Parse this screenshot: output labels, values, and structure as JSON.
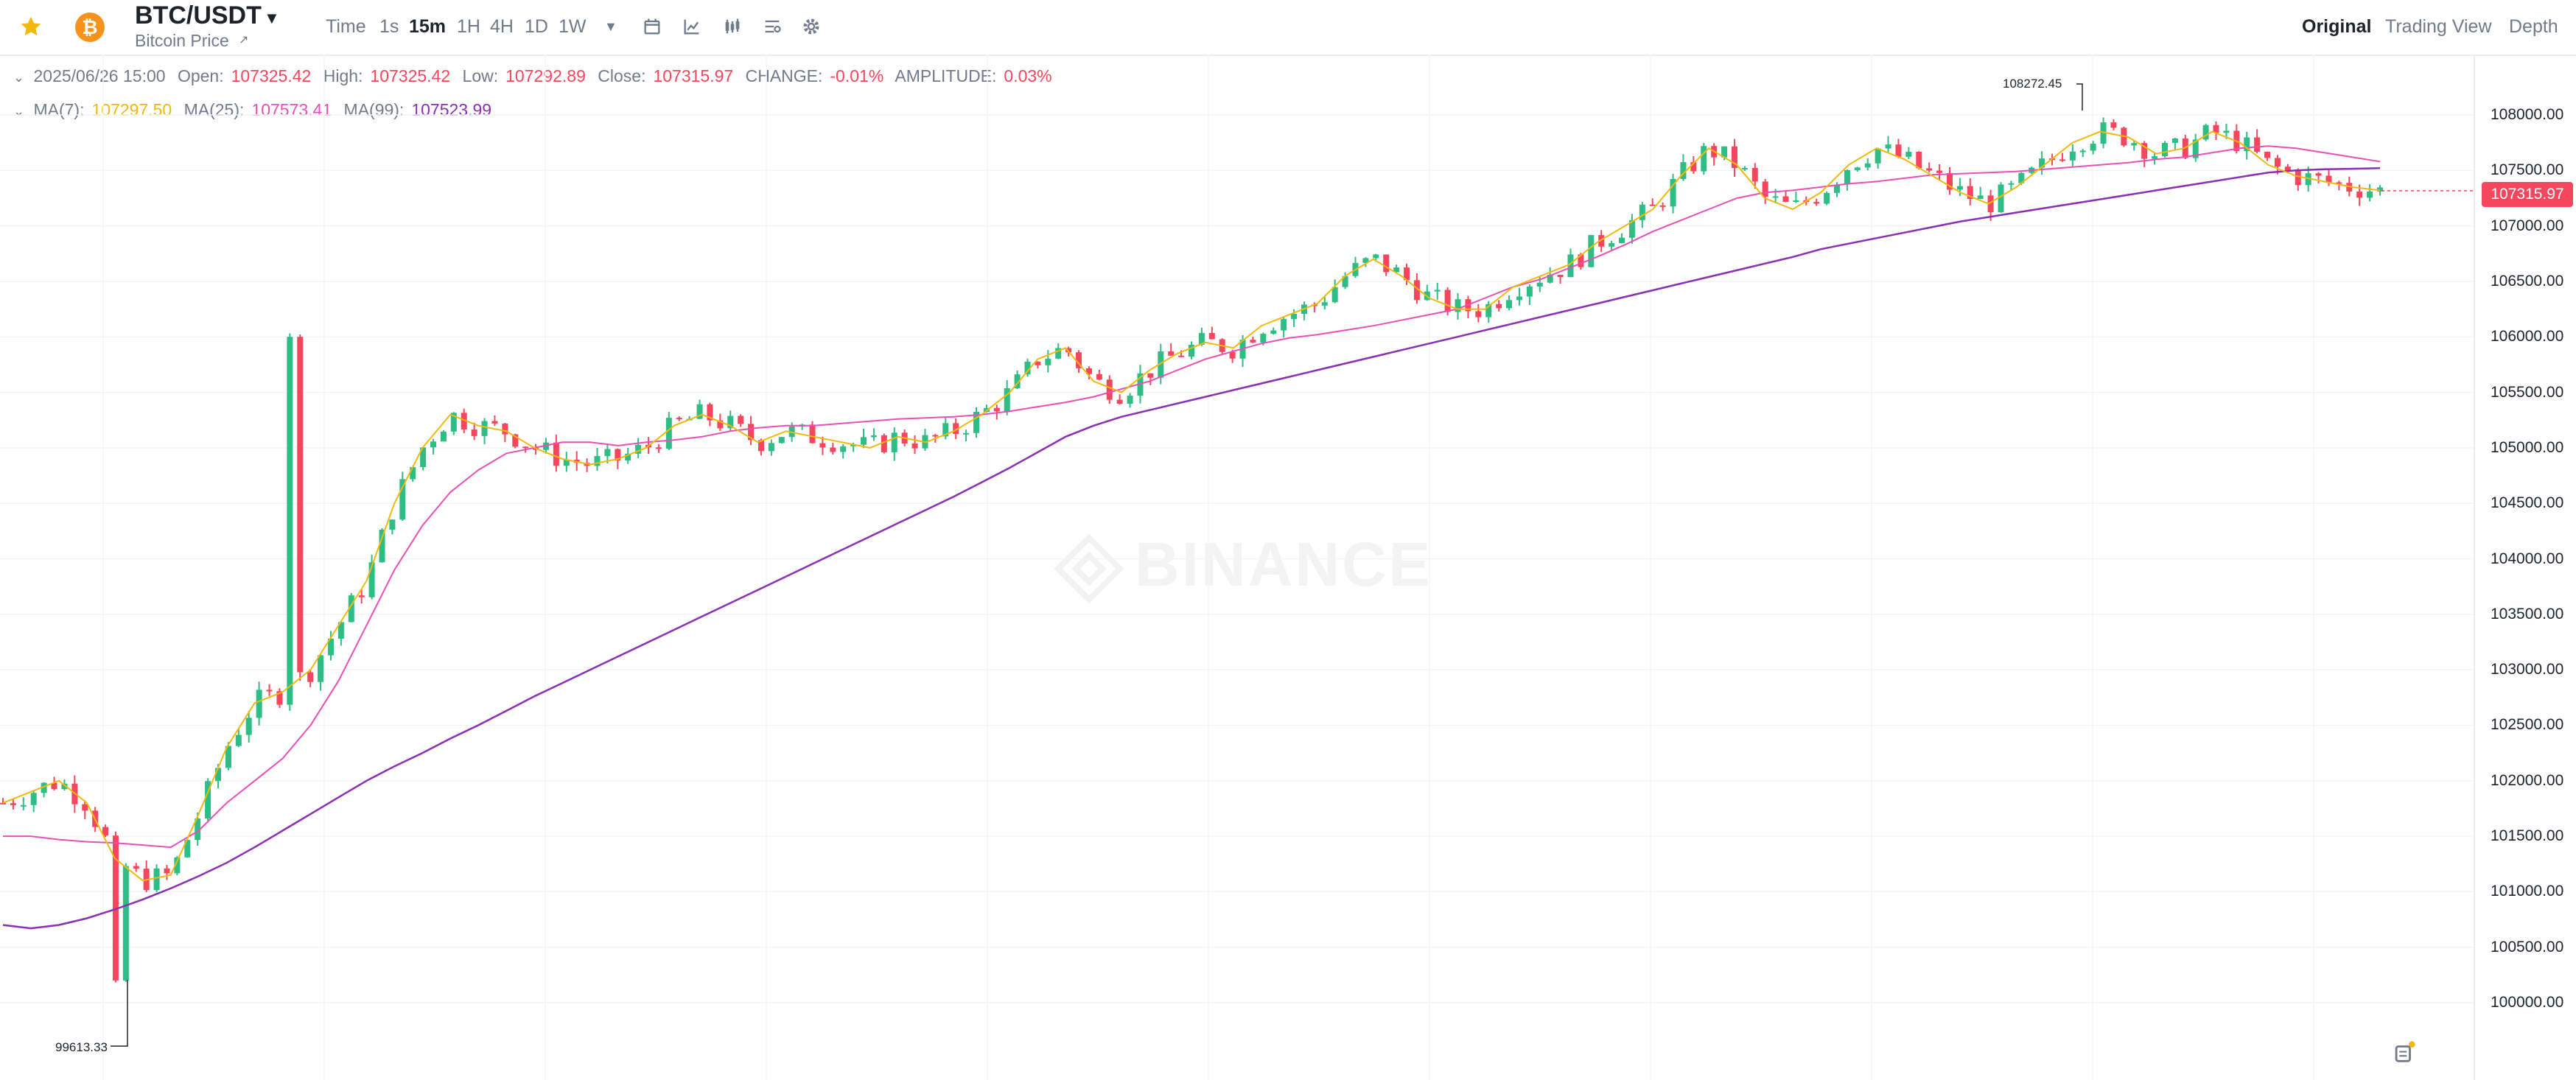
{
  "header": {
    "pair": "BTC/USDT",
    "subtitle": "Bitcoin Price",
    "coin_symbol": "₿",
    "timeframes": [
      "Time",
      "1s",
      "15m",
      "1H",
      "4H",
      "1D",
      "1W"
    ],
    "active_timeframe": "15m",
    "views": [
      "Original",
      "Trading View",
      "Depth"
    ],
    "active_view": "Original"
  },
  "ohlc": {
    "date": "2025/06/26 15:00",
    "open_label": "Open:",
    "open": "107325.42",
    "high_label": "High:",
    "high": "107325.42",
    "low_label": "Low:",
    "low": "107292.89",
    "close_label": "Close:",
    "close": "107315.97",
    "change_label": "CHANGE:",
    "change": "-0.01%",
    "amplitude_label": "AMPLITUDE:",
    "amplitude": "0.03%"
  },
  "ma": {
    "ma7_label": "MA(7):",
    "ma7": "107297.50",
    "ma25_label": "MA(25):",
    "ma25": "107573.41",
    "ma99_label": "MA(99):",
    "ma99": "107523.99"
  },
  "price_axis": [
    "108000.00",
    "107500.00",
    "107000.00",
    "106500.00",
    "106000.00",
    "105500.00",
    "105000.00",
    "104500.00",
    "104000.00",
    "103500.00",
    "103000.00",
    "102500.00",
    "102000.00",
    "101500.00",
    "101000.00",
    "100500.00",
    "100000.00"
  ],
  "current_price": "107315.97",
  "high_marker": "108272.45",
  "low_marker": "99613.33",
  "watermark": "BINANCE",
  "colors": {
    "up": "#2ebd85",
    "down": "#f6465d",
    "ma7": "#f0b90b",
    "ma25": "#e84fb8",
    "ma99": "#8b2fb3",
    "price_tag": "#f6465d"
  },
  "chart_data": {
    "type": "candlestick",
    "ylim": [
      99500,
      108400
    ],
    "ma99": [
      100700,
      100670,
      100700,
      100760,
      100840,
      100930,
      101030,
      101140,
      101260,
      101400,
      101550,
      101700,
      101850,
      102000,
      102130,
      102250,
      102380,
      102500,
      102630,
      102760,
      102880,
      103000,
      103120,
      103240,
      103360,
      103480,
      103600,
      103720,
      103840,
      103960,
      104080,
      104200,
      104320,
      104440,
      104560,
      104690,
      104820,
      104960,
      105100,
      105200,
      105280,
      105340,
      105400,
      105460,
      105520,
      105580,
      105640,
      105700,
      105760,
      105820,
      105880,
      105940,
      106000,
      106060,
      106120,
      106180,
      106240,
      106300,
      106360,
      106420,
      106480,
      106540,
      106600,
      106660,
      106720,
      106790,
      106840,
      106890,
      106940,
      106990,
      107040,
      107080,
      107120,
      107160,
      107200,
      107240,
      107280,
      107320,
      107360,
      107400,
      107440,
      107480,
      107500,
      107510,
      107515,
      107520
    ],
    "ma25": [
      101500,
      101500,
      101470,
      101450,
      101440,
      101420,
      101400,
      101550,
      101800,
      102000,
      102200,
      102500,
      102900,
      103400,
      103900,
      104300,
      104600,
      104800,
      104950,
      105000,
      105050,
      105050,
      105020,
      105050,
      105070,
      105100,
      105150,
      105180,
      105200,
      105200,
      105220,
      105240,
      105260,
      105270,
      105280,
      105300,
      105330,
      105370,
      105410,
      105460,
      105530,
      105600,
      105700,
      105800,
      105870,
      105940,
      105990,
      106020,
      106060,
      106100,
      106150,
      106200,
      106250,
      106350,
      106450,
      106520,
      106620,
      106720,
      106830,
      106950,
      107050,
      107150,
      107250,
      107300,
      107320,
      107350,
      107380,
      107400,
      107430,
      107460,
      107470,
      107480,
      107490,
      107510,
      107530,
      107550,
      107570,
      107600,
      107620,
      107660,
      107700,
      107720,
      107700,
      107660,
      107620,
      107580
    ],
    "ma7": [
      101800,
      101900,
      102000,
      101800,
      101300,
      101100,
      101150,
      101700,
      102300,
      102700,
      102800,
      103000,
      103400,
      103800,
      104500,
      105000,
      105300,
      105200,
      105150,
      105000,
      104900,
      104850,
      104900,
      105000,
      105200,
      105300,
      105200,
      105050,
      105150,
      105100,
      105050,
      105000,
      105100,
      105050,
      105150,
      105300,
      105500,
      105800,
      105900,
      105600,
      105500,
      105700,
      105850,
      105950,
      105900,
      106100,
      106200,
      106300,
      106550,
      106700,
      106550,
      106350,
      106250,
      106250,
      106450,
      106550,
      106650,
      106850,
      107000,
      107150,
      107450,
      107700,
      107550,
      107250,
      107150,
      107300,
      107550,
      107700,
      107600,
      107450,
      107300,
      107200,
      107350,
      107550,
      107750,
      107850,
      107800,
      107650,
      107700,
      107850,
      107750,
      107550,
      107450,
      107400,
      107350,
      107320
    ]
  }
}
